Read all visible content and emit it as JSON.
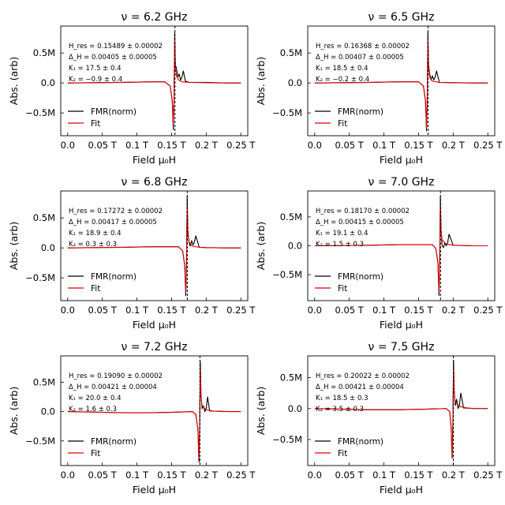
{
  "chart_data": [
    {
      "type": "line",
      "title": "ν = 6.2 GHz",
      "xlabel": "Field μ₀H",
      "ylabel": "Abs. (arb)",
      "xlim": [
        -0.01,
        0.26
      ],
      "ylim": [
        -0.88,
        0.95
      ],
      "xticks": [
        0.0,
        0.05,
        0.1,
        0.15,
        0.2,
        0.25
      ],
      "xtick_labels": [
        "0.0",
        "0.05 T",
        "0.1 T",
        "0.15 T",
        "0.2 T",
        "0.25 T"
      ],
      "yticks": [
        0.5,
        0.0,
        -0.5
      ],
      "ytick_labels": [
        "0.5M",
        "0.0",
        "−0.5M"
      ],
      "resonance_line": 0.15489,
      "annotations": [
        "H_res = 0.15489 ± 0.00002",
        "Δ_H = 0.00405 ± 0.00005",
        "K₁ = 17.5 ± 0.4",
        "K₂ = −0.9 ± 0.4"
      ],
      "legend": {
        "position": "lower-left",
        "entries": [
          "FMR(norm)",
          "Fit"
        ]
      },
      "series": [
        {
          "name": "FMR(norm)",
          "color": "#000000",
          "x": [
            0.0,
            0.04,
            0.08,
            0.12,
            0.14,
            0.148,
            0.151,
            0.1525,
            0.1535,
            0.1545,
            0.1555,
            0.157,
            0.159,
            0.161,
            0.163,
            0.165,
            0.167,
            0.17,
            0.175,
            0.2,
            0.23,
            0.25
          ],
          "y": [
            0.0,
            0.005,
            0.01,
            0.02,
            0.02,
            -0.05,
            -0.3,
            -0.78,
            -0.3,
            0.84,
            0.3,
            0.25,
            0.1,
            0.15,
            0.05,
            0.1,
            0.2,
            0.03,
            0.01,
            0.01,
            0.0,
            0.0
          ]
        },
        {
          "name": "Fit",
          "color": "#e00000",
          "x": [
            0.0,
            0.04,
            0.08,
            0.12,
            0.14,
            0.148,
            0.151,
            0.1525,
            0.1535,
            0.1545,
            0.1555,
            0.157,
            0.16,
            0.165,
            0.175,
            0.2,
            0.23,
            0.25
          ],
          "y": [
            0.0,
            0.005,
            0.01,
            0.02,
            0.02,
            -0.05,
            -0.3,
            -0.7,
            -0.3,
            0.75,
            0.25,
            0.12,
            0.05,
            0.02,
            0.01,
            0.005,
            0.0,
            0.0
          ]
        }
      ]
    },
    {
      "type": "line",
      "title": "ν = 6.5 GHz",
      "xlabel": "Field μ₀H",
      "ylabel": "Abs. (arb)",
      "xlim": [
        -0.01,
        0.26
      ],
      "ylim": [
        -0.88,
        0.95
      ],
      "xticks": [
        0.0,
        0.05,
        0.1,
        0.15,
        0.2,
        0.25
      ],
      "xtick_labels": [
        "0.0",
        "0.05 T",
        "0.1 T",
        "0.15 T",
        "0.2 T",
        "0.25 T"
      ],
      "yticks": [
        0.5,
        0.0,
        -0.5
      ],
      "ytick_labels": [
        "0.5M",
        "0.0",
        "−0.5M"
      ],
      "resonance_line": 0.16368,
      "annotations": [
        "H_res = 0.16368 ± 0.00002",
        "Δ_H = 0.00407 ± 0.00005",
        "K₁ = 18.5 ± 0.4",
        "K₂ = −0.2 ± 0.4"
      ],
      "legend": {
        "position": "lower-left",
        "entries": [
          "FMR(norm)",
          "Fit"
        ]
      },
      "series": [
        {
          "name": "FMR(norm)",
          "color": "#000000",
          "x": [
            0.0,
            0.04,
            0.08,
            0.12,
            0.15,
            0.157,
            0.16,
            0.1615,
            0.1625,
            0.1635,
            0.1645,
            0.166,
            0.168,
            0.17,
            0.172,
            0.174,
            0.176,
            0.18,
            0.2,
            0.23,
            0.25
          ],
          "y": [
            0.0,
            0.005,
            0.01,
            0.02,
            0.02,
            -0.05,
            -0.3,
            -0.8,
            -0.3,
            0.85,
            0.3,
            0.15,
            0.05,
            0.12,
            0.05,
            0.1,
            0.2,
            0.01,
            0.005,
            0.0,
            0.0
          ]
        },
        {
          "name": "Fit",
          "color": "#e00000",
          "x": [
            0.0,
            0.04,
            0.08,
            0.12,
            0.15,
            0.157,
            0.16,
            0.1615,
            0.1625,
            0.1635,
            0.1645,
            0.166,
            0.17,
            0.18,
            0.2,
            0.23,
            0.25
          ],
          "y": [
            0.0,
            0.005,
            0.01,
            0.02,
            0.02,
            -0.05,
            -0.3,
            -0.75,
            -0.3,
            0.75,
            0.25,
            0.1,
            0.03,
            0.01,
            0.005,
            0.0,
            0.0
          ]
        }
      ]
    },
    {
      "type": "line",
      "title": "ν = 6.8 GHz",
      "xlabel": "Field μ₀H",
      "ylabel": "Abs. (arb)",
      "xlim": [
        -0.01,
        0.26
      ],
      "ylim": [
        -0.88,
        0.95
      ],
      "xticks": [
        0.0,
        0.05,
        0.1,
        0.15,
        0.2,
        0.25
      ],
      "xtick_labels": [
        "0.0",
        "0.05 T",
        "0.1 T",
        "0.15 T",
        "0.2 T",
        "0.25 T"
      ],
      "yticks": [
        0.5,
        0.0,
        -0.5
      ],
      "ytick_labels": [
        "0.5M",
        "0.0",
        "−0.5M"
      ],
      "resonance_line": 0.17272,
      "annotations": [
        "H_res = 0.17272 ± 0.00002",
        "Δ_H = 0.00417 ± 0.00005",
        "K₁ = 18.9 ± 0.4",
        "K₂ = 0.3 ± 0.3"
      ],
      "legend": {
        "position": "lower-left",
        "entries": [
          "FMR(norm)",
          "Fit"
        ]
      },
      "series": [
        {
          "name": "FMR(norm)",
          "color": "#000000",
          "x": [
            0.0,
            0.04,
            0.08,
            0.12,
            0.16,
            0.166,
            0.169,
            0.1705,
            0.1715,
            0.1725,
            0.1735,
            0.175,
            0.177,
            0.179,
            0.181,
            0.183,
            0.185,
            0.19,
            0.2,
            0.23,
            0.25
          ],
          "y": [
            0.0,
            0.005,
            0.01,
            0.02,
            0.02,
            -0.05,
            -0.3,
            -0.8,
            -0.3,
            0.86,
            0.3,
            0.1,
            0.03,
            0.12,
            0.05,
            0.1,
            0.2,
            0.01,
            0.005,
            0.0,
            0.0
          ]
        },
        {
          "name": "Fit",
          "color": "#e00000",
          "x": [
            0.0,
            0.04,
            0.08,
            0.12,
            0.16,
            0.166,
            0.169,
            0.1705,
            0.1715,
            0.1725,
            0.1735,
            0.175,
            0.18,
            0.19,
            0.2,
            0.23,
            0.25
          ],
          "y": [
            0.0,
            0.005,
            0.01,
            0.02,
            0.02,
            -0.05,
            -0.3,
            -0.75,
            -0.3,
            0.7,
            0.25,
            0.1,
            0.03,
            0.01,
            0.005,
            0.0,
            0.0
          ]
        }
      ]
    },
    {
      "type": "line",
      "title": "ν = 7.0 GHz",
      "xlabel": "Field μ₀H",
      "ylabel": "Abs. (arb)",
      "xlim": [
        -0.01,
        0.26
      ],
      "ylim": [
        -0.95,
        0.95
      ],
      "xticks": [
        0.0,
        0.05,
        0.1,
        0.15,
        0.2,
        0.25
      ],
      "xtick_labels": [
        "0.0",
        "0.05 T",
        "0.1 T",
        "0.15 T",
        "0.2 T",
        "0.25 T"
      ],
      "yticks": [
        0.5,
        0.0,
        -0.5
      ],
      "ytick_labels": [
        "0.5M",
        "0.0",
        "−0.5M"
      ],
      "resonance_line": 0.1817,
      "annotations": [
        "H_res = 0.18170 ± 0.00002",
        "Δ_H = 0.00415 ± 0.00005",
        "K₁ = 19.1 ± 0.4",
        "K₂ = 1.5 ± 0.3"
      ],
      "legend": {
        "position": "lower-left",
        "entries": [
          "FMR(norm)",
          "Fit"
        ]
      },
      "series": [
        {
          "name": "FMR(norm)",
          "color": "#000000",
          "x": [
            0.0,
            0.04,
            0.08,
            0.12,
            0.17,
            0.175,
            0.178,
            0.1795,
            0.1805,
            0.1815,
            0.1825,
            0.184,
            0.186,
            0.188,
            0.19,
            0.192,
            0.194,
            0.2,
            0.23,
            0.25
          ],
          "y": [
            0.0,
            0.005,
            0.01,
            0.02,
            0.02,
            -0.05,
            -0.3,
            -0.86,
            -0.3,
            0.86,
            0.3,
            0.0,
            -0.03,
            0.05,
            0.0,
            0.05,
            0.2,
            0.01,
            0.0,
            0.0
          ]
        },
        {
          "name": "Fit",
          "color": "#e00000",
          "x": [
            0.0,
            0.04,
            0.08,
            0.12,
            0.17,
            0.175,
            0.178,
            0.1795,
            0.1805,
            0.1815,
            0.1825,
            0.184,
            0.19,
            0.2,
            0.23,
            0.25
          ],
          "y": [
            0.0,
            0.005,
            0.01,
            0.02,
            0.02,
            -0.05,
            -0.3,
            -0.8,
            -0.3,
            0.72,
            0.25,
            0.1,
            0.03,
            0.01,
            0.0,
            0.0
          ]
        }
      ]
    },
    {
      "type": "line",
      "title": "ν = 7.2 GHz",
      "xlabel": "Field μ₀H",
      "ylabel": "Abs. (arb)",
      "xlim": [
        -0.01,
        0.26
      ],
      "ylim": [
        -0.92,
        0.95
      ],
      "xticks": [
        0.0,
        0.05,
        0.1,
        0.15,
        0.2,
        0.25
      ],
      "xtick_labels": [
        "0.0",
        "0.05 T",
        "0.1 T",
        "0.15 T",
        "0.2 T",
        "0.25 T"
      ],
      "yticks": [
        0.5,
        0.0,
        -0.5
      ],
      "ytick_labels": [
        "0.5M",
        "0.0",
        "−0.5M"
      ],
      "resonance_line": 0.1909,
      "annotations": [
        "H_res = 0.19090 ± 0.00002",
        "Δ_H = 0.00421 ± 0.00004",
        "K₁ = 20.0 ± 0.4",
        "K₂ = 1.6 ± 0.3"
      ],
      "legend": {
        "position": "lower-left",
        "entries": [
          "FMR(norm)",
          "Fit"
        ]
      },
      "series": [
        {
          "name": "FMR(norm)",
          "color": "#000000",
          "x": [
            0.0,
            0.04,
            0.08,
            0.12,
            0.16,
            0.18,
            0.185,
            0.188,
            0.1895,
            0.1905,
            0.1915,
            0.1925,
            0.194,
            0.196,
            0.198,
            0.2,
            0.202,
            0.205,
            0.23,
            0.25
          ],
          "y": [
            0.0,
            -0.01,
            -0.02,
            -0.02,
            -0.01,
            0.0,
            -0.05,
            -0.3,
            -0.86,
            -0.3,
            0.86,
            0.3,
            0.05,
            0.1,
            0.0,
            0.05,
            0.25,
            0.01,
            0.0,
            0.0
          ]
        },
        {
          "name": "Fit",
          "color": "#e00000",
          "x": [
            0.0,
            0.04,
            0.08,
            0.12,
            0.16,
            0.18,
            0.185,
            0.188,
            0.1895,
            0.1905,
            0.1915,
            0.1925,
            0.194,
            0.2,
            0.21,
            0.23,
            0.25
          ],
          "y": [
            0.0,
            -0.01,
            -0.02,
            -0.02,
            -0.01,
            0.0,
            -0.05,
            -0.3,
            -0.8,
            -0.3,
            0.72,
            0.25,
            0.1,
            0.03,
            0.01,
            0.0,
            0.0
          ]
        }
      ]
    },
    {
      "type": "line",
      "title": "ν = 7.5 GHz",
      "xlabel": "Field μ₀H",
      "ylabel": "Abs. (arb)",
      "xlim": [
        -0.01,
        0.26
      ],
      "ylim": [
        -0.92,
        0.85
      ],
      "xticks": [
        0.0,
        0.05,
        0.1,
        0.15,
        0.2,
        0.25
      ],
      "xtick_labels": [
        "0.0",
        "0.05 T",
        "0.1 T",
        "0.15 T",
        "0.2 T",
        "0.25 T"
      ],
      "yticks": [
        0.5,
        0.0,
        -0.5
      ],
      "ytick_labels": [
        "0.5M",
        "0.0",
        "−0.5M"
      ],
      "resonance_line": 0.20022,
      "annotations": [
        "H_res = 0.20022 ± 0.00002",
        "Δ_H = 0.00421 ± 0.00004",
        "K₁ = 18.5 ± 0.3",
        "K₂ = 3.5 ± 0.3"
      ],
      "legend": {
        "position": "lower-left",
        "entries": [
          "FMR(norm)",
          "Fit"
        ]
      },
      "series": [
        {
          "name": "FMR(norm)",
          "color": "#000000",
          "x": [
            0.0,
            0.04,
            0.08,
            0.12,
            0.16,
            0.19,
            0.195,
            0.197,
            0.1985,
            0.1995,
            0.2005,
            0.2015,
            0.203,
            0.205,
            0.207,
            0.209,
            0.211,
            0.215,
            0.23,
            0.25
          ],
          "y": [
            0.0,
            -0.01,
            -0.02,
            -0.02,
            -0.01,
            0.0,
            -0.05,
            -0.3,
            -0.8,
            -0.3,
            0.78,
            0.3,
            0.05,
            0.15,
            0.0,
            0.05,
            0.25,
            0.01,
            0.0,
            0.0
          ]
        },
        {
          "name": "Fit",
          "color": "#e00000",
          "x": [
            0.0,
            0.04,
            0.08,
            0.12,
            0.16,
            0.19,
            0.195,
            0.197,
            0.1985,
            0.1995,
            0.2005,
            0.2015,
            0.203,
            0.21,
            0.22,
            0.23,
            0.25
          ],
          "y": [
            0.0,
            -0.01,
            -0.02,
            -0.02,
            -0.01,
            0.0,
            -0.05,
            -0.3,
            -0.75,
            -0.3,
            0.65,
            0.25,
            0.1,
            0.03,
            0.01,
            0.0,
            0.0
          ]
        }
      ]
    }
  ]
}
